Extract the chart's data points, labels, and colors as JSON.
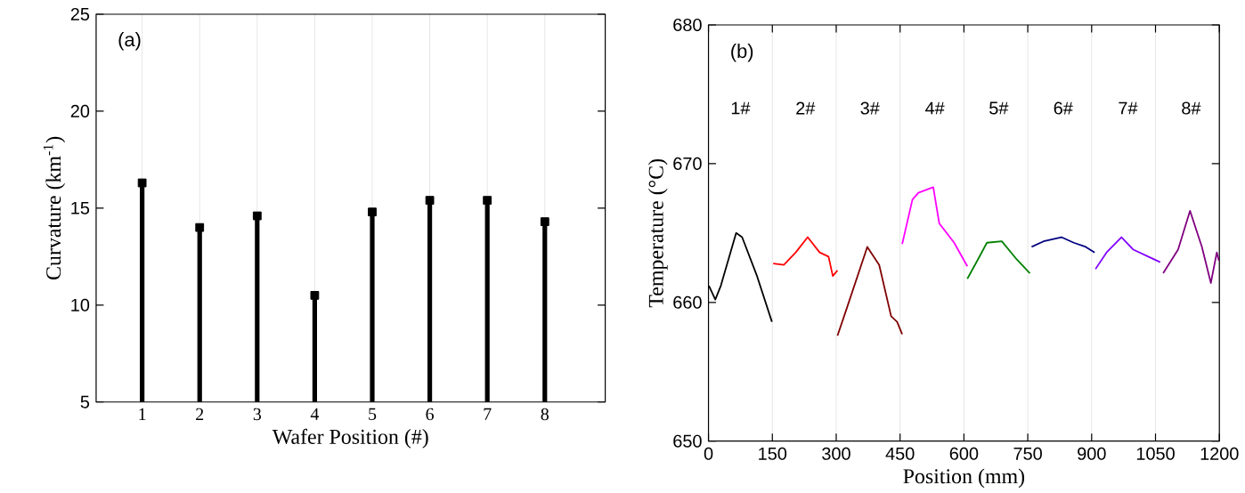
{
  "chart_data": [
    {
      "type": "lollipop",
      "categories": [
        "1",
        "2",
        "3",
        "4",
        "5",
        "6",
        "7",
        "8"
      ],
      "values": [
        16.3,
        14.0,
        14.6,
        10.5,
        14.8,
        15.4,
        15.4,
        14.3
      ],
      "color": "#000000",
      "marker": "square",
      "xlabel": "Wafer Position (#)",
      "ylabel": "Curvature (km$^{-1}$)",
      "ylim": [
        5,
        25
      ],
      "yticks": [
        5,
        10,
        15,
        20,
        25
      ],
      "grid": "x",
      "annotations": [
        "(a)"
      ]
    },
    {
      "type": "line",
      "xlabel": "Position (mm)",
      "ylabel": "Temperature (°C)",
      "xlim": [
        0,
        1200
      ],
      "xticks": [
        0,
        150,
        300,
        450,
        600,
        750,
        900,
        1050,
        1200
      ],
      "ylim": [
        650,
        680
      ],
      "yticks": [
        650,
        660,
        670,
        680
      ],
      "grid": "x",
      "series": [
        {
          "color": "#000000",
          "x": [
            1,
            16,
            29,
            65,
            79,
            114,
            149
          ],
          "values": [
            661.2,
            660.2,
            661.2,
            665.0,
            664.7,
            661.9,
            658.6
          ]
        },
        {
          "color": "#ff0000",
          "x": [
            152,
            177,
            205,
            233,
            261,
            282,
            292,
            303
          ],
          "values": [
            662.8,
            662.7,
            663.6,
            664.7,
            663.6,
            663.3,
            661.9,
            662.3
          ]
        },
        {
          "color": "#800000",
          "x": [
            303,
            324,
            373,
            401,
            429,
            443,
            455
          ],
          "values": [
            657.6,
            659.5,
            664.0,
            662.7,
            659.0,
            658.6,
            657.7
          ]
        },
        {
          "color": "#ff00ff",
          "x": [
            455,
            479,
            493,
            528,
            542,
            577,
            608
          ],
          "values": [
            664.2,
            667.4,
            667.9,
            668.3,
            665.7,
            664.3,
            662.6
          ]
        },
        {
          "color": "#008000",
          "x": [
            608,
            633,
            654,
            689,
            724,
            755
          ],
          "values": [
            661.7,
            663.1,
            664.3,
            664.4,
            663.1,
            662.1
          ]
        },
        {
          "color": "#000080",
          "x": [
            759,
            787,
            829,
            858,
            886,
            907
          ],
          "values": [
            664.0,
            664.4,
            664.7,
            664.3,
            664.0,
            663.6
          ]
        },
        {
          "color": "#8000ff",
          "x": [
            909,
            935,
            970,
            998,
            1033,
            1061
          ],
          "values": [
            662.4,
            663.6,
            664.7,
            663.8,
            663.3,
            662.9
          ]
        },
        {
          "color": "#800080",
          "x": [
            1068,
            1103,
            1131,
            1159,
            1180,
            1194,
            1199
          ],
          "values": [
            662.1,
            663.8,
            666.6,
            664.0,
            661.4,
            663.6,
            663.0
          ]
        }
      ],
      "annotations": [
        "(b)",
        "1#",
        "2#",
        "3#",
        "4#",
        "5#",
        "6#",
        "7#",
        "8#"
      ]
    }
  ]
}
